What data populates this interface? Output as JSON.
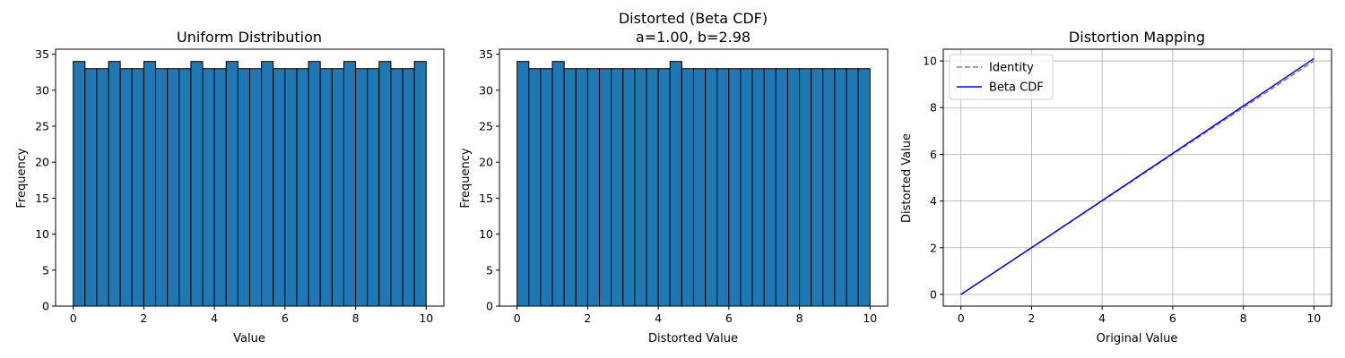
{
  "chart_data": [
    {
      "type": "bar",
      "title": "Uniform Distribution",
      "xlabel": "Value",
      "ylabel": "Frequency",
      "xlim": [
        -0.5,
        10.5
      ],
      "ylim": [
        0,
        35.7
      ],
      "xticks": [
        0,
        2,
        4,
        6,
        8,
        10
      ],
      "yticks": [
        0,
        5,
        10,
        15,
        20,
        25,
        30,
        35
      ],
      "bin_start": 0,
      "bin_width": 0.3333,
      "values": [
        34,
        33,
        33,
        34,
        33,
        33,
        34,
        33,
        33,
        33,
        34,
        33,
        33,
        34,
        33,
        33,
        34,
        33,
        33,
        33,
        34,
        33,
        33,
        34,
        33,
        33,
        34,
        33,
        33,
        34
      ],
      "bar_color": "#1f77b4",
      "edge_color": "#000000",
      "grid": false
    },
    {
      "type": "bar",
      "title": "Distorted (Beta CDF)",
      "subtitle": "a=1.00, b=2.98",
      "xlabel": "Distorted Value",
      "ylabel": "Frequency",
      "xlim": [
        -0.5,
        10.5
      ],
      "ylim": [
        0,
        35.7
      ],
      "xticks": [
        0,
        2,
        4,
        6,
        8,
        10
      ],
      "yticks": [
        0,
        5,
        10,
        15,
        20,
        25,
        30,
        35
      ],
      "bin_start": 0,
      "bin_width": 0.3333,
      "values": [
        34,
        33,
        33,
        34,
        33,
        33,
        33,
        33,
        33,
        33,
        33,
        33,
        33,
        34,
        33,
        33,
        33,
        33,
        33,
        33,
        33,
        33,
        33,
        33,
        33,
        33,
        33,
        33,
        33,
        33
      ],
      "bar_color": "#1f77b4",
      "edge_color": "#000000",
      "grid": false
    },
    {
      "type": "line",
      "title": "Distortion Mapping",
      "xlabel": "Original Value",
      "ylabel": "Distorted Value",
      "xlim": [
        -0.5,
        10.5
      ],
      "ylim": [
        -0.5,
        10.5
      ],
      "xticks": [
        0,
        2,
        4,
        6,
        8,
        10
      ],
      "yticks": [
        0,
        2,
        4,
        6,
        8,
        10
      ],
      "grid": true,
      "legend": "top-left",
      "series": [
        {
          "name": "Identity",
          "x": [
            0,
            10
          ],
          "y": [
            0,
            10
          ],
          "color": "#808080",
          "dash": true
        },
        {
          "name": "Beta CDF",
          "x": [
            0,
            2,
            4,
            6,
            8,
            10
          ],
          "y": [
            0,
            2.0,
            4.02,
            6.04,
            8.07,
            10.1
          ],
          "color": "#0000ff",
          "dash": false
        }
      ]
    }
  ]
}
